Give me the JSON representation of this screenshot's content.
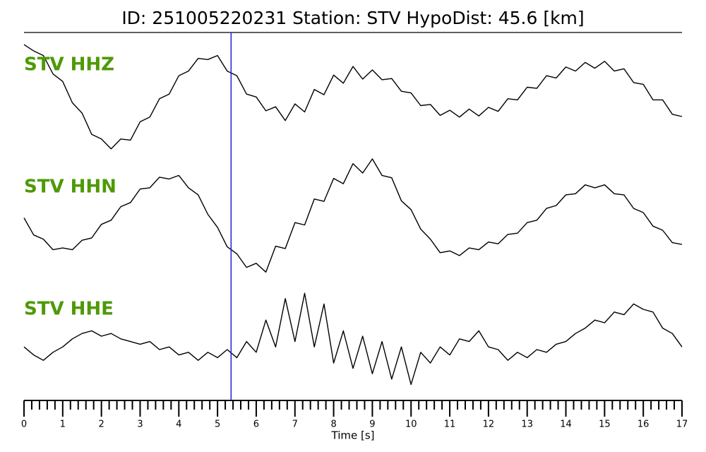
{
  "chart_data": {
    "type": "seismogram",
    "title": "ID: 251005220231   Station: STV   HypoDist:    45.6 [km]",
    "xlabel": "Time [s]",
    "xlim": [
      0,
      17
    ],
    "xticks": [
      0,
      1,
      2,
      3,
      4,
      5,
      6,
      7,
      8,
      9,
      10,
      11,
      12,
      13,
      14,
      15,
      16,
      17
    ],
    "xminorticks": [
      0.2,
      0.4,
      0.6,
      0.8,
      1.2,
      1.4,
      1.6,
      1.8,
      2.2,
      2.4,
      2.6,
      2.8,
      3.2,
      3.4,
      3.6,
      3.8,
      4.2,
      4.4,
      4.6,
      4.8,
      5.2,
      5.4,
      5.6,
      5.8,
      6.2,
      6.4,
      6.6,
      6.8,
      7.2,
      7.4,
      7.6,
      7.8,
      8.2,
      8.4,
      8.6,
      8.8,
      9.2,
      9.4,
      9.6,
      9.8,
      10.2,
      10.4,
      10.6,
      10.8,
      11.2,
      11.4,
      11.6,
      11.8,
      12.2,
      12.4,
      12.6,
      12.8,
      13.2,
      13.4,
      13.6,
      13.8,
      14.2,
      14.4,
      14.6,
      14.8,
      15.2,
      15.4,
      15.6,
      15.8,
      16.2,
      16.4,
      16.6,
      16.8
    ],
    "pick_time": 5.35,
    "pick_color": "#1f1fd6",
    "label_color": "#4e9a06",
    "ylim": [
      -1,
      1
    ],
    "x": [
      0,
      0.25,
      0.5,
      0.75,
      1,
      1.25,
      1.5,
      1.75,
      2,
      2.25,
      2.5,
      2.75,
      3,
      3.25,
      3.5,
      3.75,
      4,
      4.25,
      4.5,
      4.75,
      5,
      5.25,
      5.5,
      5.75,
      6,
      6.25,
      6.5,
      6.75,
      7,
      7.25,
      7.5,
      7.75,
      8,
      8.25,
      8.5,
      8.75,
      9,
      9.25,
      9.5,
      9.75,
      10,
      10.25,
      10.5,
      10.75,
      11,
      11.25,
      11.5,
      11.75,
      12,
      12.25,
      12.5,
      12.75,
      13,
      13.25,
      13.5,
      13.75,
      14,
      14.25,
      14.5,
      14.75,
      15,
      15.25,
      15.5,
      15.75,
      16,
      16.25,
      16.5,
      16.75,
      17
    ],
    "series": [
      {
        "name": "STV HHZ",
        "color": "#000000",
        "values": [
          0.9,
          0.79,
          0.71,
          0.39,
          0.26,
          -0.11,
          -0.29,
          -0.66,
          -0.74,
          -0.91,
          -0.74,
          -0.76,
          -0.44,
          -0.36,
          -0.04,
          0.04,
          0.36,
          0.44,
          0.66,
          0.64,
          0.71,
          0.44,
          0.36,
          0.04,
          -0.01,
          -0.25,
          -0.18,
          -0.42,
          -0.13,
          -0.27,
          0.12,
          0.03,
          0.37,
          0.23,
          0.52,
          0.3,
          0.46,
          0.29,
          0.31,
          0.09,
          0.06,
          -0.16,
          -0.14,
          -0.33,
          -0.24,
          -0.36,
          -0.22,
          -0.34,
          -0.19,
          -0.26,
          -0.04,
          -0.06,
          0.16,
          0.14,
          0.36,
          0.32,
          0.51,
          0.44,
          0.59,
          0.49,
          0.61,
          0.44,
          0.48,
          0.24,
          0.21,
          -0.06,
          -0.06,
          -0.31,
          -0.35
        ]
      },
      {
        "name": "STV HHN",
        "color": "#000000",
        "values": [
          0.0,
          -0.29,
          -0.36,
          -0.54,
          -0.51,
          -0.54,
          -0.38,
          -0.34,
          -0.11,
          -0.04,
          0.19,
          0.26,
          0.49,
          0.51,
          0.69,
          0.66,
          0.72,
          0.51,
          0.39,
          0.06,
          -0.16,
          -0.49,
          -0.61,
          -0.84,
          -0.77,
          -0.92,
          -0.48,
          -0.52,
          -0.08,
          -0.12,
          0.32,
          0.28,
          0.67,
          0.58,
          0.92,
          0.76,
          1.0,
          0.72,
          0.68,
          0.29,
          0.14,
          -0.19,
          -0.36,
          -0.59,
          -0.56,
          -0.64,
          -0.51,
          -0.54,
          -0.41,
          -0.44,
          -0.28,
          -0.26,
          -0.08,
          -0.04,
          0.16,
          0.21,
          0.39,
          0.41,
          0.56,
          0.51,
          0.56,
          0.41,
          0.39,
          0.16,
          0.09,
          -0.14,
          -0.21,
          -0.42,
          -0.45
        ]
      },
      {
        "name": "STV HHE",
        "color": "#000000",
        "values": [
          -0.2,
          -0.35,
          -0.45,
          -0.3,
          -0.2,
          -0.05,
          0.05,
          0.1,
          0.0,
          0.05,
          -0.05,
          -0.1,
          -0.15,
          -0.1,
          -0.25,
          -0.2,
          -0.35,
          -0.3,
          -0.45,
          -0.3,
          -0.4,
          -0.25,
          -0.4,
          -0.1,
          -0.3,
          0.3,
          -0.2,
          0.7,
          -0.1,
          0.8,
          -0.2,
          0.6,
          -0.5,
          0.1,
          -0.6,
          0.0,
          -0.7,
          -0.1,
          -0.8,
          -0.2,
          -0.9,
          -0.3,
          -0.5,
          -0.2,
          -0.35,
          -0.05,
          -0.1,
          0.1,
          -0.2,
          -0.25,
          -0.45,
          -0.3,
          -0.4,
          -0.25,
          -0.3,
          -0.15,
          -0.1,
          0.05,
          0.15,
          0.3,
          0.25,
          0.45,
          0.4,
          0.6,
          0.5,
          0.45,
          0.15,
          0.05,
          -0.2
        ]
      }
    ]
  }
}
